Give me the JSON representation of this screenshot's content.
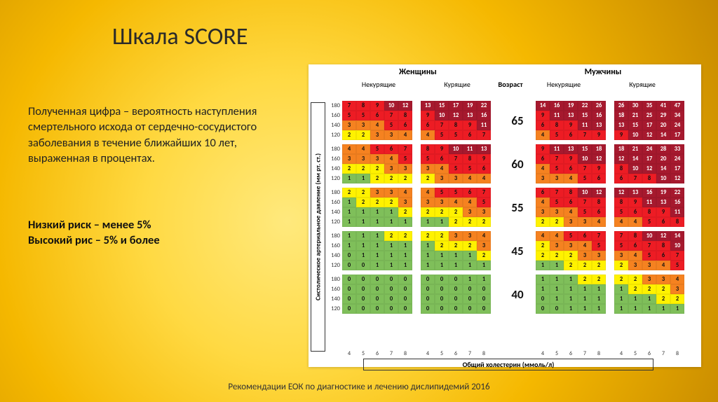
{
  "title": "Шкала SCORE",
  "description": "Полученная цифра – вероятность наступления смертельного исхода от сердечно-сосудистого заболевания в течение ближайших 10 лет, выраженная в процентах.",
  "risk_low": "Низкий риск – менее 5%",
  "risk_high": "Высокий рис – 5% и более",
  "footer": "Рекомендации ЕОК по диагностике и лечению дислипидемий 2016",
  "vertical_axis": "Систолическое артериальное давление (мм рт. ст.)",
  "horizontal_axis": "Общий холестерин (ммоль/л)",
  "gender_headers": [
    "Женщины",
    "Мужчины"
  ],
  "smoke_headers": [
    "Некурящие",
    "Курящие",
    "Некурящие",
    "Курящие"
  ],
  "age_header": "Возраст",
  "ages": [
    "65",
    "60",
    "55",
    "45",
    "40"
  ],
  "bp_ticks": [
    "180",
    "160",
    "140",
    "120"
  ],
  "chol_ticks": [
    "4",
    "5",
    "6",
    "7",
    "8"
  ],
  "colors": {
    "green": "#7fbf5a",
    "yellow": "#fff200",
    "orange": "#f58220",
    "red": "#ed1c24",
    "darkred": "#a6192e"
  },
  "chart": [
    {
      "age": "65",
      "blocks": [
        [
          [
            7,
            8,
            9,
            10,
            12
          ],
          [
            5,
            5,
            6,
            7,
            8
          ],
          [
            3,
            3,
            4,
            5,
            6
          ],
          [
            2,
            2,
            3,
            3,
            4
          ]
        ],
        [
          [
            13,
            15,
            17,
            19,
            22
          ],
          [
            9,
            10,
            12,
            13,
            16
          ],
          [
            6,
            7,
            8,
            9,
            11
          ],
          [
            4,
            5,
            5,
            6,
            7
          ]
        ],
        [
          [
            14,
            16,
            19,
            22,
            26
          ],
          [
            9,
            11,
            13,
            15,
            16
          ],
          [
            6,
            8,
            9,
            11,
            13
          ],
          [
            4,
            5,
            6,
            7,
            9
          ]
        ],
        [
          [
            26,
            30,
            35,
            41,
            47
          ],
          [
            18,
            21,
            25,
            29,
            34
          ],
          [
            13,
            15,
            17,
            20,
            24
          ],
          [
            9,
            10,
            12,
            14,
            17
          ]
        ]
      ]
    },
    {
      "age": "60",
      "blocks": [
        [
          [
            4,
            4,
            5,
            6,
            7
          ],
          [
            3,
            3,
            3,
            4,
            5
          ],
          [
            2,
            2,
            2,
            3,
            3
          ],
          [
            1,
            1,
            2,
            2,
            2
          ]
        ],
        [
          [
            8,
            9,
            10,
            11,
            13
          ],
          [
            5,
            6,
            7,
            8,
            9
          ],
          [
            3,
            4,
            5,
            5,
            6
          ],
          [
            2,
            3,
            3,
            4,
            4
          ]
        ],
        [
          [
            9,
            11,
            13,
            15,
            18
          ],
          [
            6,
            7,
            9,
            10,
            12
          ],
          [
            4,
            5,
            6,
            7,
            9
          ],
          [
            3,
            3,
            4,
            5,
            6
          ]
        ],
        [
          [
            18,
            21,
            24,
            28,
            33
          ],
          [
            12,
            14,
            17,
            20,
            24
          ],
          [
            8,
            10,
            12,
            14,
            17
          ],
          [
            6,
            7,
            8,
            10,
            12
          ]
        ]
      ]
    },
    {
      "age": "55",
      "blocks": [
        [
          [
            2,
            2,
            3,
            3,
            4
          ],
          [
            1,
            2,
            2,
            2,
            3
          ],
          [
            1,
            1,
            1,
            1,
            2
          ],
          [
            1,
            1,
            1,
            1,
            1
          ]
        ],
        [
          [
            4,
            5,
            5,
            6,
            7
          ],
          [
            3,
            3,
            4,
            4,
            5
          ],
          [
            2,
            2,
            2,
            3,
            3
          ],
          [
            1,
            1,
            2,
            2,
            2
          ]
        ],
        [
          [
            6,
            7,
            8,
            10,
            12
          ],
          [
            4,
            5,
            6,
            7,
            8
          ],
          [
            3,
            3,
            4,
            5,
            6
          ],
          [
            2,
            2,
            3,
            3,
            4
          ]
        ],
        [
          [
            12,
            13,
            16,
            19,
            22
          ],
          [
            8,
            9,
            11,
            13,
            16
          ],
          [
            5,
            6,
            8,
            9,
            11
          ],
          [
            4,
            4,
            5,
            6,
            8
          ]
        ]
      ]
    },
    {
      "age": "45",
      "blocks": [
        [
          [
            1,
            1,
            1,
            2,
            2
          ],
          [
            1,
            1,
            1,
            1,
            1
          ],
          [
            0,
            1,
            1,
            1,
            1
          ],
          [
            0,
            0,
            1,
            1,
            1
          ]
        ],
        [
          [
            2,
            2,
            3,
            3,
            4
          ],
          [
            1,
            2,
            2,
            2,
            3
          ],
          [
            1,
            1,
            1,
            1,
            2
          ],
          [
            1,
            1,
            1,
            1,
            1
          ]
        ],
        [
          [
            4,
            4,
            5,
            6,
            7
          ],
          [
            2,
            3,
            3,
            4,
            5
          ],
          [
            2,
            2,
            2,
            3,
            3
          ],
          [
            1,
            1,
            2,
            2,
            2
          ]
        ],
        [
          [
            7,
            8,
            10,
            12,
            14
          ],
          [
            5,
            6,
            7,
            8,
            10
          ],
          [
            3,
            4,
            5,
            6,
            7
          ],
          [
            2,
            3,
            3,
            4,
            5
          ]
        ]
      ]
    },
    {
      "age": "40",
      "blocks": [
        [
          [
            0,
            0,
            0,
            0,
            0
          ],
          [
            0,
            0,
            0,
            0,
            0
          ],
          [
            0,
            0,
            0,
            0,
            0
          ],
          [
            0,
            0,
            0,
            0,
            0
          ]
        ],
        [
          [
            0,
            0,
            0,
            1,
            1
          ],
          [
            0,
            0,
            0,
            0,
            0
          ],
          [
            0,
            0,
            0,
            0,
            0
          ],
          [
            0,
            0,
            0,
            0,
            0
          ]
        ],
        [
          [
            1,
            1,
            1,
            2,
            2
          ],
          [
            1,
            1,
            1,
            1,
            1
          ],
          [
            0,
            1,
            1,
            1,
            1
          ],
          [
            0,
            0,
            1,
            1,
            1
          ]
        ],
        [
          [
            2,
            2,
            3,
            3,
            4
          ],
          [
            1,
            2,
            2,
            2,
            3
          ],
          [
            1,
            1,
            1,
            2,
            2
          ],
          [
            1,
            1,
            1,
            1,
            1
          ]
        ]
      ]
    }
  ]
}
